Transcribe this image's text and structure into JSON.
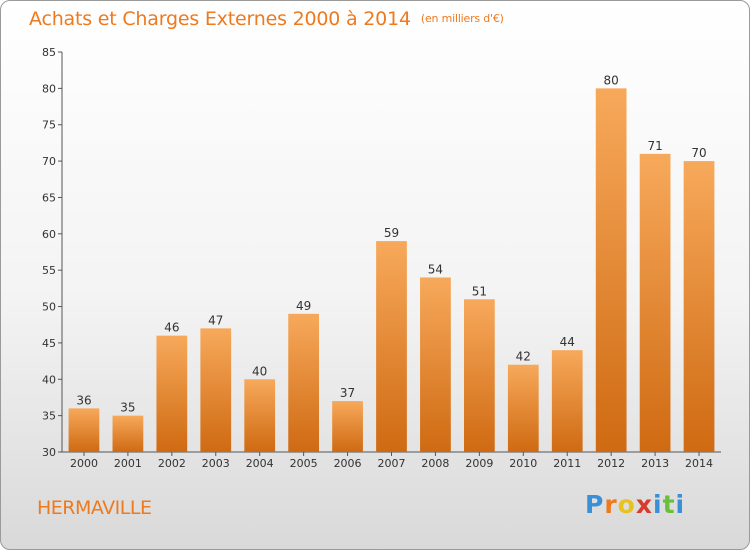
{
  "header": {
    "title": "Achats et Charges Externes 2000 à 2014",
    "subtitle": "(en milliers d'€)"
  },
  "footer": {
    "town": "HERMAVILLE",
    "logo_letters": [
      "P",
      "r",
      "o",
      "x",
      "i",
      "t",
      "i"
    ],
    "logo_colors": [
      "#3b8fd6",
      "#ee7a1f",
      "#e8c21e",
      "#d83a2b",
      "#3b8fd6",
      "#6abf3d",
      "#3b8fd6"
    ]
  },
  "colors": {
    "accent": "#ee7a1f",
    "bar_top": "#f7a95b",
    "bar_bottom": "#cf6a12"
  },
  "chart_data": {
    "type": "bar",
    "title": "Achats et Charges Externes 2000 à 2014",
    "subtitle": "(en milliers d'€)",
    "categories": [
      "2000",
      "2001",
      "2002",
      "2003",
      "2004",
      "2005",
      "2006",
      "2007",
      "2008",
      "2009",
      "2010",
      "2011",
      "2012",
      "2013",
      "2014"
    ],
    "values": [
      36,
      35,
      46,
      47,
      40,
      49,
      37,
      59,
      54,
      51,
      42,
      44,
      80,
      71,
      70
    ],
    "ylim": [
      30,
      85
    ],
    "yticks": [
      30,
      35,
      40,
      45,
      50,
      55,
      60,
      65,
      70,
      75,
      80,
      85
    ],
    "grid": false,
    "legend": "none"
  }
}
